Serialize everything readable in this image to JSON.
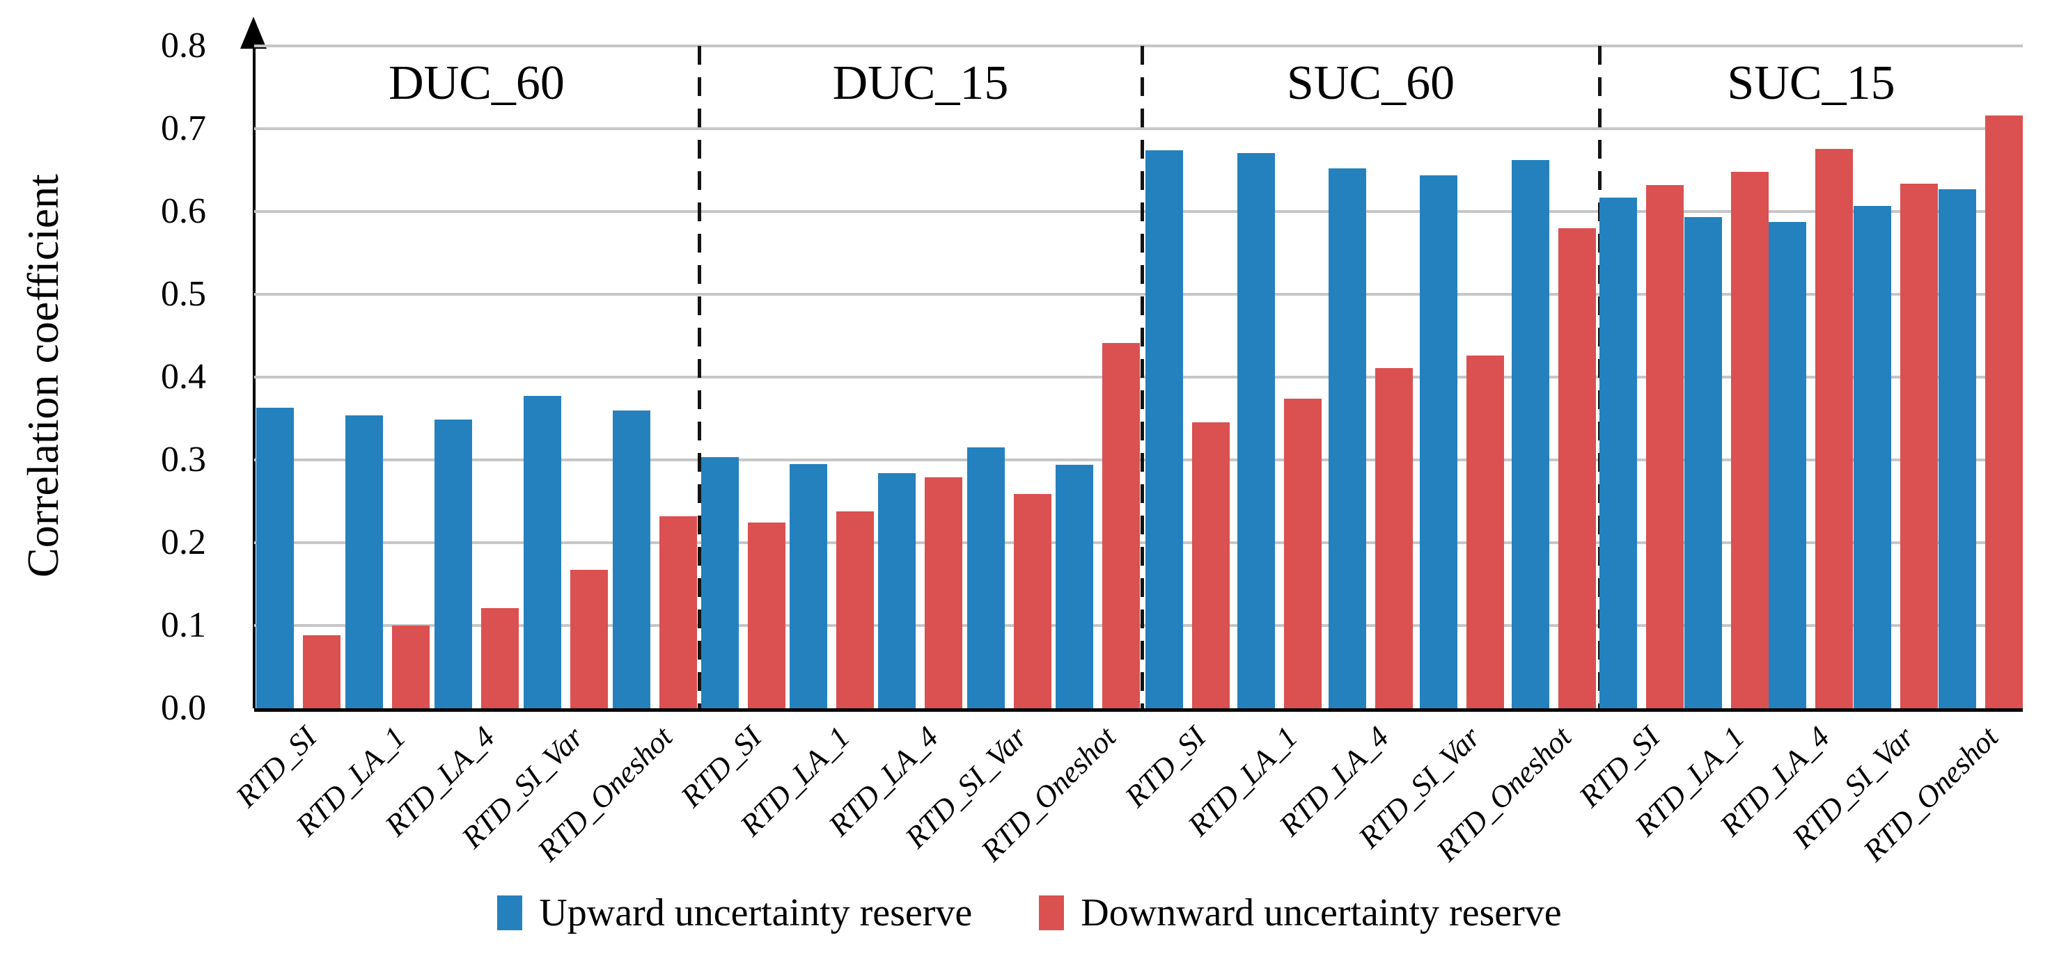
{
  "chart_data": {
    "type": "bar",
    "title": "",
    "xlabel": "",
    "ylabel": "Correlation coefficient",
    "ylim": [
      0.0,
      0.8
    ],
    "ytick_step": 0.1,
    "ytick_labels": [
      "0.0",
      "0.1",
      "0.2",
      "0.3",
      "0.4",
      "0.5",
      "0.6",
      "0.7",
      "0.8"
    ],
    "grid": true,
    "legend_position": "bottom",
    "group_labels": [
      "DUC_60",
      "DUC_15",
      "SUC_60",
      "SUC_15"
    ],
    "categories": [
      "RTD_SI",
      "RTD_LA_1",
      "RTD_LA_4",
      "RTD_SI_Var",
      "RTD_Oneshot"
    ],
    "series": [
      {
        "name": "Upward uncertainty reserve",
        "color": "#2481BE",
        "values_by_group": {
          "DUC_60": [
            0.363,
            0.354,
            0.349,
            0.377,
            0.36
          ],
          "DUC_15": [
            0.303,
            0.295,
            0.284,
            0.315,
            0.294
          ],
          "SUC_60": [
            0.674,
            0.671,
            0.652,
            0.644,
            0.662
          ],
          "SUC_15": [
            0.617,
            0.593,
            0.587,
            0.607,
            0.627
          ]
        }
      },
      {
        "name": "Downward uncertainty reserve",
        "color": "#DB5050",
        "values_by_group": {
          "DUC_60": [
            0.088,
            0.1,
            0.121,
            0.167,
            0.232
          ],
          "DUC_15": [
            0.224,
            0.238,
            0.279,
            0.259,
            0.441
          ],
          "SUC_60": [
            0.345,
            0.374,
            0.411,
            0.426,
            0.58
          ],
          "SUC_15": [
            0.632,
            0.648,
            0.676,
            0.634,
            0.716
          ]
        }
      }
    ]
  },
  "legend": {
    "upward_label": "Upward uncertainty reserve",
    "downward_label": "Downward uncertainty reserve"
  },
  "colors": {
    "upward": "#2481BE",
    "downward": "#DB5050",
    "gridline": "#c6c6c6",
    "axis": "#000000"
  }
}
